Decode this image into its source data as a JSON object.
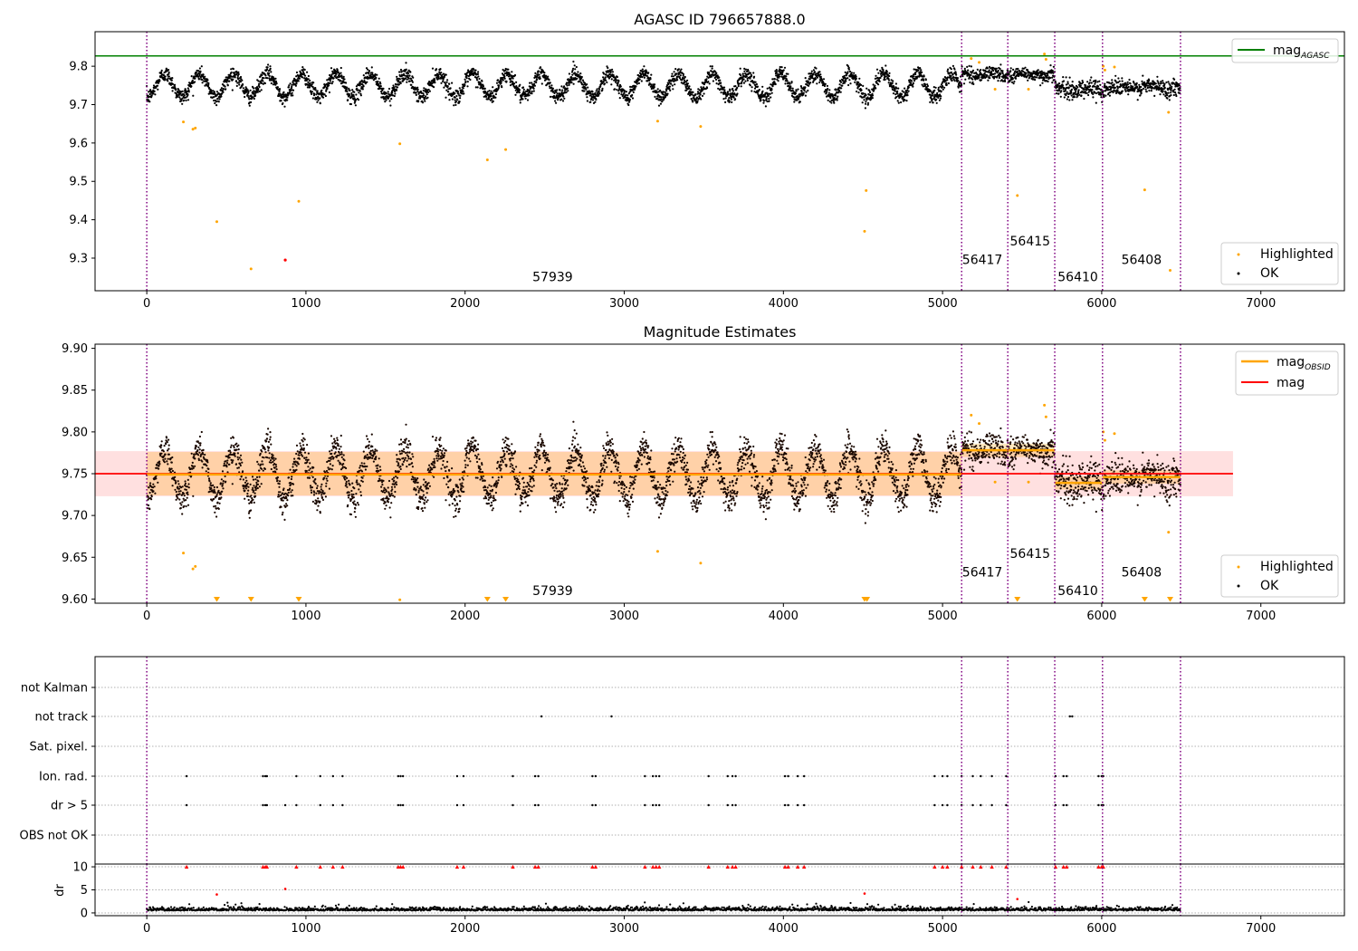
{
  "chart_data": [
    {
      "type": "scatter",
      "title": "AGASC ID 796657888.0",
      "xlim": [
        -325,
        7525
      ],
      "ylim": [
        9.215,
        9.89
      ],
      "x_ticks": [
        0,
        1000,
        2000,
        3000,
        4000,
        5000,
        6000,
        7000
      ],
      "x_tick_labels": [
        "0",
        "1000",
        "2000",
        "3000",
        "4000",
        "5000",
        "6000",
        "7000"
      ],
      "y_ticks": [
        9.3,
        9.4,
        9.5,
        9.6,
        9.7,
        9.8
      ],
      "y_tick_labels": [
        "9.3",
        "9.4",
        "9.5",
        "9.6",
        "9.7",
        "9.8"
      ],
      "mag_agasc": 9.827,
      "obsid_boundaries": [
        0,
        5120,
        5410,
        5705,
        6005,
        6495
      ],
      "obsid_labels": [
        {
          "text": "57939",
          "x": 2550,
          "y": 9.24
        },
        {
          "text": "56417",
          "x": 5250,
          "y": 9.285
        },
        {
          "text": "56415",
          "x": 5550,
          "y": 9.333
        },
        {
          "text": "56410",
          "x": 5850,
          "y": 9.24
        },
        {
          "text": "56408",
          "x": 6250,
          "y": 9.285
        }
      ],
      "ok_segments": [
        {
          "x0": 0,
          "x1": 5120,
          "base": 9.75,
          "amp": 0.03,
          "period": 215,
          "noise": 0.01
        },
        {
          "x0": 5120,
          "x1": 5410,
          "base": 9.779,
          "amp": 0.004,
          "period": 200,
          "noise": 0.009
        },
        {
          "x0": 5410,
          "x1": 5705,
          "base": 9.778,
          "amp": 0.004,
          "period": 200,
          "noise": 0.009
        },
        {
          "x0": 5705,
          "x1": 6005,
          "base": 9.74,
          "amp": 0.004,
          "period": 200,
          "noise": 0.012
        },
        {
          "x0": 6005,
          "x1": 6495,
          "base": 9.745,
          "amp": 0.004,
          "period": 200,
          "noise": 0.011
        }
      ],
      "highlighted": [
        {
          "x": 230,
          "y": 9.655
        },
        {
          "x": 290,
          "y": 9.636
        },
        {
          "x": 305,
          "y": 9.639
        },
        {
          "x": 440,
          "y": 9.395
        },
        {
          "x": 655,
          "y": 9.272
        },
        {
          "x": 955,
          "y": 9.448
        },
        {
          "x": 1590,
          "y": 9.598
        },
        {
          "x": 2140,
          "y": 9.556
        },
        {
          "x": 2255,
          "y": 9.583
        },
        {
          "x": 3210,
          "y": 9.657
        },
        {
          "x": 3480,
          "y": 9.643
        },
        {
          "x": 4510,
          "y": 9.37
        },
        {
          "x": 4520,
          "y": 9.476
        },
        {
          "x": 5180,
          "y": 9.82
        },
        {
          "x": 5230,
          "y": 9.81
        },
        {
          "x": 5330,
          "y": 9.74
        },
        {
          "x": 5470,
          "y": 9.463
        },
        {
          "x": 5540,
          "y": 9.74
        },
        {
          "x": 5640,
          "y": 9.832
        },
        {
          "x": 5650,
          "y": 9.818
        },
        {
          "x": 6010,
          "y": 9.8
        },
        {
          "x": 6020,
          "y": 9.79
        },
        {
          "x": 6080,
          "y": 9.798
        },
        {
          "x": 6270,
          "y": 9.478
        },
        {
          "x": 6420,
          "y": 9.68
        },
        {
          "x": 6430,
          "y": 9.268
        }
      ],
      "red_points": [
        {
          "x": 870,
          "y": 9.295
        }
      ],
      "legend_top": [
        {
          "label": "mag",
          "subscript": "AGASC",
          "color": "#008000"
        }
      ],
      "legend_bottom": [
        {
          "label": "Highlighted",
          "color": "#ffa500"
        },
        {
          "label": "OK",
          "color": "#000000"
        }
      ]
    },
    {
      "type": "scatter",
      "title": "Magnitude Estimates",
      "xlim": [
        -325,
        7525
      ],
      "ylim": [
        9.595,
        9.905
      ],
      "x_ticks": [
        0,
        1000,
        2000,
        3000,
        4000,
        5000,
        6000,
        7000
      ],
      "x_tick_labels": [
        "0",
        "1000",
        "2000",
        "3000",
        "4000",
        "5000",
        "6000",
        "7000"
      ],
      "y_ticks": [
        9.6,
        9.65,
        9.7,
        9.75,
        9.8,
        9.85,
        9.9
      ],
      "y_tick_labels": [
        "9.60",
        "9.65",
        "9.70",
        "9.75",
        "9.80",
        "9.85",
        "9.90"
      ],
      "mag": 9.75,
      "mag_band": [
        9.723,
        9.777
      ],
      "mag_band_x": [
        -325,
        6825
      ],
      "mag_obsid": [
        {
          "x0": 0,
          "x1": 5120,
          "mag": 9.749,
          "band": [
            9.724,
            9.776
          ]
        },
        {
          "x0": 5120,
          "x1": 5705,
          "mag": 9.778,
          "band": [
            9.77,
            9.786
          ]
        },
        {
          "x0": 5705,
          "x1": 6005,
          "mag": 9.739,
          "band": [
            9.731,
            9.747
          ]
        },
        {
          "x0": 6005,
          "x1": 6495,
          "mag": 9.746,
          "band": [
            9.738,
            9.754
          ]
        }
      ],
      "obsid_boundaries": [
        0,
        5120,
        5410,
        5705,
        6005,
        6495
      ],
      "obsid_labels": [
        {
          "text": "57939",
          "x": 2550,
          "y": 9.605
        },
        {
          "text": "56417",
          "x": 5250,
          "y": 9.627
        },
        {
          "text": "56415",
          "x": 5550,
          "y": 9.649
        },
        {
          "text": "56410",
          "x": 5850,
          "y": 9.605
        },
        {
          "text": "56408",
          "x": 6250,
          "y": 9.627
        }
      ],
      "highlighted": [
        {
          "x": 230,
          "y": 9.655
        },
        {
          "x": 290,
          "y": 9.636
        },
        {
          "x": 305,
          "y": 9.639
        },
        {
          "x": 1590,
          "y": 9.599
        },
        {
          "x": 3210,
          "y": 9.657
        },
        {
          "x": 3480,
          "y": 9.643
        },
        {
          "x": 5180,
          "y": 9.82
        },
        {
          "x": 5230,
          "y": 9.81
        },
        {
          "x": 5330,
          "y": 9.74
        },
        {
          "x": 5540,
          "y": 9.74
        },
        {
          "x": 5640,
          "y": 9.832
        },
        {
          "x": 5650,
          "y": 9.818
        },
        {
          "x": 6010,
          "y": 9.8
        },
        {
          "x": 6020,
          "y": 9.79
        },
        {
          "x": 6080,
          "y": 9.798
        },
        {
          "x": 6420,
          "y": 9.68
        }
      ],
      "below_range": [
        440,
        655,
        955,
        2140,
        2255,
        4510,
        4525,
        5470,
        6270,
        6430
      ],
      "legend_top": [
        {
          "label": "mag",
          "subscript": "OBSID",
          "color": "#ffa500"
        },
        {
          "label": "mag",
          "subscript": "",
          "color": "#ff0000"
        }
      ],
      "legend_bottom": [
        {
          "label": "Highlighted",
          "color": "#ffa500"
        },
        {
          "label": "OK",
          "color": "#000000"
        }
      ]
    },
    {
      "type": "scatter",
      "title": "",
      "xlim": [
        -325,
        7525
      ],
      "flag_labels": [
        "not Kalman",
        "not track",
        "Sat. pixel.",
        "Ion. rad.",
        "dr > 5",
        "OBS not OK"
      ],
      "flags": {
        "not Kalman": [],
        "not track": [
          2480,
          2920,
          5800,
          5815
        ],
        "Sat. pixel.": [],
        "Ion. rad.": [
          250,
          730,
          745,
          755,
          940,
          1090,
          1170,
          1230,
          1580,
          1595,
          1610,
          1950,
          1990,
          2300,
          2440,
          2460,
          2800,
          2820,
          3130,
          3180,
          3200,
          3220,
          3530,
          3650,
          3680,
          3700,
          4010,
          4030,
          4090,
          4130,
          4950,
          5000,
          5030,
          5120,
          5190,
          5240,
          5310,
          5400,
          5710,
          5760,
          5780,
          5980,
          6000,
          6010
        ],
        "dr > 5": [
          250,
          730,
          745,
          755,
          870,
          940,
          1090,
          1170,
          1230,
          1580,
          1595,
          1610,
          1950,
          1990,
          2300,
          2440,
          2460,
          2800,
          2820,
          3130,
          3180,
          3200,
          3220,
          3530,
          3650,
          3680,
          3700,
          4010,
          4030,
          4090,
          4130,
          4950,
          5000,
          5030,
          5120,
          5190,
          5240,
          5310,
          5400,
          5710,
          5760,
          5780,
          5980,
          6000,
          6010
        ],
        "OBS not OK": []
      },
      "obsid_boundaries": [
        0,
        5120,
        5410,
        5705,
        6005,
        6495
      ]
    },
    {
      "type": "scatter",
      "title": "",
      "ylabel": "dr",
      "xlim": [
        -325,
        7525
      ],
      "ylim": [
        -0.6,
        10.6
      ],
      "x_ticks": [
        0,
        1000,
        2000,
        3000,
        4000,
        5000,
        6000,
        7000
      ],
      "x_tick_labels": [
        "0",
        "1000",
        "2000",
        "3000",
        "4000",
        "5000",
        "6000",
        "7000"
      ],
      "y_ticks": [
        0,
        5,
        10
      ],
      "y_tick_labels": [
        "0",
        "5",
        "10"
      ],
      "dr_typical": 0.5,
      "clipped_at_10": [
        250,
        730,
        745,
        755,
        940,
        1090,
        1170,
        1230,
        1580,
        1595,
        1610,
        1950,
        1990,
        2300,
        2440,
        2460,
        2800,
        2820,
        3130,
        3180,
        3200,
        3220,
        3530,
        3650,
        3680,
        3700,
        4010,
        4030,
        4090,
        4130,
        4950,
        5000,
        5030,
        5120,
        5190,
        5240,
        5310,
        5400,
        5710,
        5760,
        5780,
        5980,
        6000,
        6010
      ],
      "red_points": [
        {
          "x": 440,
          "y": 4.0
        },
        {
          "x": 870,
          "y": 5.2
        },
        {
          "x": 4510,
          "y": 4.2
        },
        {
          "x": 5470,
          "y": 3.0
        }
      ],
      "obsid_boundaries": [
        0,
        5120,
        5410,
        5705,
        6005,
        6495
      ]
    }
  ]
}
